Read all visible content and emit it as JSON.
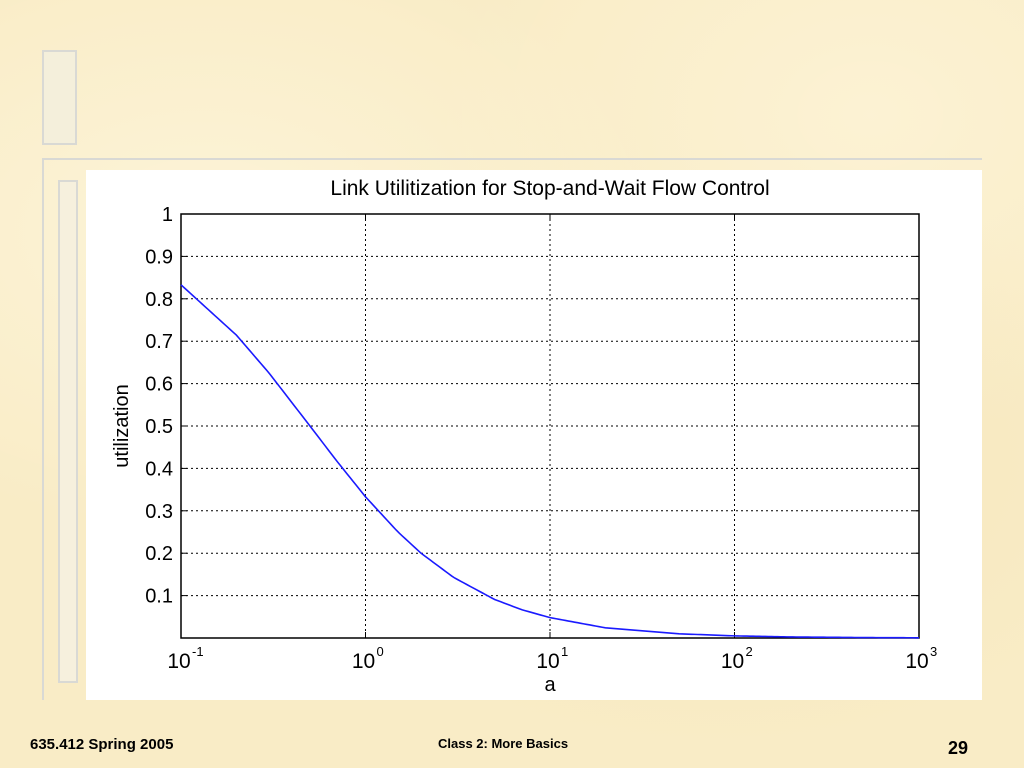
{
  "footer": {
    "left": "635.412 Spring 2005",
    "center": "Class 2:  More Basics",
    "right": "29"
  },
  "chart_data": {
    "type": "line",
    "title": "Link Utilitization for Stop-and-Wait Flow Control",
    "xlabel": "a",
    "ylabel": "utilization",
    "x_scale": "log",
    "xlim": [
      0.1,
      1000
    ],
    "ylim": [
      0,
      1
    ],
    "x_ticks": [
      {
        "value": 0.1,
        "base": "10",
        "exp": "-1"
      },
      {
        "value": 1,
        "base": "10",
        "exp": "0"
      },
      {
        "value": 10,
        "base": "10",
        "exp": "1"
      },
      {
        "value": 100,
        "base": "10",
        "exp": "2"
      },
      {
        "value": 1000,
        "base": "10",
        "exp": "3"
      }
    ],
    "y_ticks": [
      {
        "value": 0.1,
        "label": "0.1"
      },
      {
        "value": 0.2,
        "label": "0.2"
      },
      {
        "value": 0.3,
        "label": "0.3"
      },
      {
        "value": 0.4,
        "label": "0.4"
      },
      {
        "value": 0.5,
        "label": "0.5"
      },
      {
        "value": 0.6,
        "label": "0.6"
      },
      {
        "value": 0.7,
        "label": "0.7"
      },
      {
        "value": 0.8,
        "label": "0.8"
      },
      {
        "value": 0.9,
        "label": "0.9"
      },
      {
        "value": 1,
        "label": "1"
      }
    ],
    "grid": true,
    "series": [
      {
        "color": "#1a1aff",
        "x": [
          0.1,
          0.2,
          0.3,
          0.5,
          0.7,
          1,
          1.5,
          2,
          3,
          5,
          7,
          10,
          20,
          50,
          100,
          200,
          500,
          1000
        ],
        "y": [
          0.833,
          0.714,
          0.625,
          0.5,
          0.417,
          0.333,
          0.25,
          0.2,
          0.143,
          0.091,
          0.067,
          0.048,
          0.024,
          0.0099,
          0.005,
          0.0025,
          0.001,
          0.0005
        ]
      }
    ]
  }
}
